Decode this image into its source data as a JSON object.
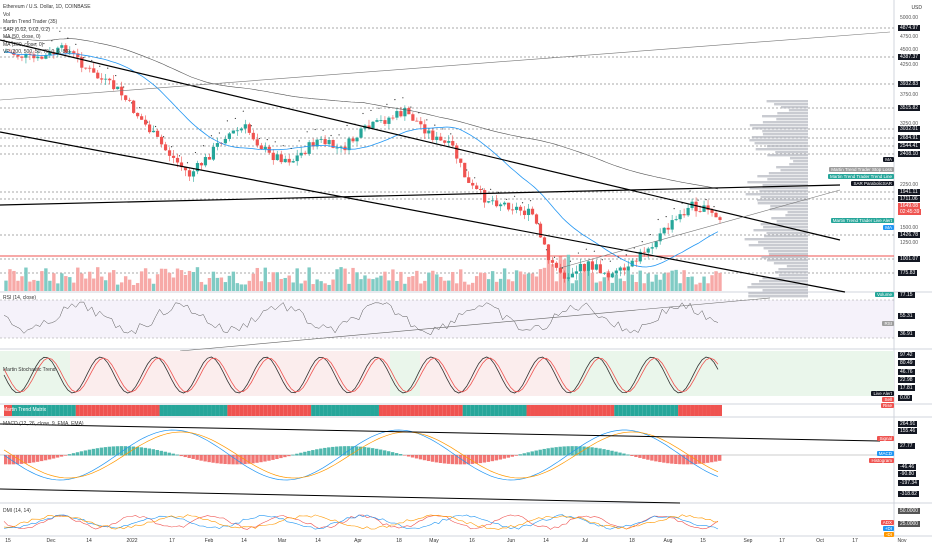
{
  "header": {
    "symbol": "Ethereum / U.S. Dollar, 1D, COINBASE",
    "currency": "USD",
    "legend": [
      "Vol",
      "Martin Trend Trader (35)",
      "SAR (0.02, 0.02, 0.2)",
      "MA (50, close, 0)",
      "MA (200, close, 0)",
      "VP (200, 500, 50, 70, 0, 6, 80)"
    ]
  },
  "price_axis": {
    "labels": [
      {
        "v": "5000.00",
        "y": 18,
        "type": "tick"
      },
      {
        "v": "4874.97",
        "y": 28,
        "type": "box"
      },
      {
        "v": "4750.00",
        "y": 37,
        "type": "tick"
      },
      {
        "v": "4500.00",
        "y": 50,
        "type": "tick"
      },
      {
        "v": "4387.37",
        "y": 57,
        "type": "box"
      },
      {
        "v": "4250.00",
        "y": 65,
        "type": "tick"
      },
      {
        "v": "3932.83",
        "y": 84,
        "type": "box"
      },
      {
        "v": "3750.00",
        "y": 95,
        "type": "tick"
      },
      {
        "v": "3515.82",
        "y": 108,
        "type": "box"
      },
      {
        "v": "3250.00",
        "y": 124,
        "type": "tick"
      },
      {
        "v": "3032.01",
        "y": 129,
        "type": "box"
      },
      {
        "v": "2684.91",
        "y": 138,
        "type": "box"
      },
      {
        "v": "2544.41",
        "y": 146,
        "type": "box"
      },
      {
        "v": "2408.10",
        "y": 154,
        "type": "box"
      },
      {
        "v": "2250.00",
        "y": 185,
        "type": "tick"
      },
      {
        "v": "1941.11",
        "y": 192,
        "type": "box"
      },
      {
        "v": "1711.06",
        "y": 199,
        "type": "box"
      },
      {
        "v": "1649.08",
        "y": 206,
        "type": "red"
      },
      {
        "v": "02:45:39",
        "y": 212,
        "type": "red"
      },
      {
        "v": "1500.00",
        "y": 228,
        "type": "tick"
      },
      {
        "v": "1426.78",
        "y": 235,
        "type": "box"
      },
      {
        "v": "1250.00",
        "y": 243,
        "type": "tick"
      },
      {
        "v": "1001.07",
        "y": 259,
        "type": "box"
      },
      {
        "v": "775.83",
        "y": 273,
        "type": "box"
      }
    ]
  },
  "tags": [
    {
      "text": "Martin Trend Trader Stop Loss",
      "y": 170,
      "color": "#ffffff",
      "bg": "#9e9e9e"
    },
    {
      "text": "Martin Trend Trader Trend Line",
      "y": 177,
      "color": "#ffffff",
      "bg": "#26a69a"
    },
    {
      "text": "SAR ParabolicSAR",
      "y": 184,
      "color": "#ffffff",
      "bg": "#131722"
    },
    {
      "text": "Martin Trend Trader Live Alert",
      "y": 221,
      "color": "#ffffff",
      "bg": "#26a69a"
    },
    {
      "text": "MA",
      "y": 228,
      "color": "#ffffff",
      "bg": "#2196f3"
    },
    {
      "text": "MA",
      "y": 160,
      "color": "#ffffff",
      "bg": "#131722"
    },
    {
      "text": "Volume",
      "y": 295,
      "color": "#ffffff",
      "bg": "#26a69a"
    }
  ],
  "rsi": {
    "title": "RSI (14, close)",
    "labels": [
      {
        "v": "77.15",
        "y": 295
      },
      {
        "v": "55.31",
        "y": 316
      },
      {
        "v": "36.91",
        "y": 334
      }
    ],
    "tag": "RSI"
  },
  "stoch": {
    "title": "Martin Stochastic Trend",
    "labels": [
      {
        "v": "97.42",
        "y": 355
      },
      {
        "v": "80.49",
        "y": 363
      },
      {
        "v": "46.76",
        "y": 372
      },
      {
        "v": "22.98",
        "y": 380
      },
      {
        "v": "17.81",
        "y": 388
      },
      {
        "v": "0.00",
        "y": 398
      }
    ],
    "tags": [
      "Live Alert",
      "Sell",
      "Rise"
    ]
  },
  "trend": {
    "title": "Martin Trend Matrix"
  },
  "macd": {
    "title": "MACD (12, 26, close, 9, EMA, EMA)",
    "labels": [
      {
        "v": "264.91",
        "y": 424
      },
      {
        "v": "155.46",
        "y": 431
      },
      {
        "v": "27.77",
        "y": 446
      },
      {
        "v": "-46.46",
        "y": 467
      },
      {
        "v": "-90.80",
        "y": 474
      },
      {
        "v": "-197.34",
        "y": 483
      },
      {
        "v": "-318.82",
        "y": 494
      }
    ],
    "tags": [
      "Signal",
      "MACD",
      "Histogram"
    ]
  },
  "dmi": {
    "title": "DMI (14, 14)",
    "labels": [
      {
        "v": "50.0000",
        "y": 511
      },
      {
        "v": "25.0000",
        "y": 524
      }
    ],
    "tags": [
      "ADX",
      "+DI",
      "-DI"
    ]
  },
  "time_axis": [
    {
      "t": "15",
      "x": 8
    },
    {
      "t": "Dec",
      "x": 51
    },
    {
      "t": "14",
      "x": 89
    },
    {
      "t": "2022",
      "x": 132
    },
    {
      "t": "17",
      "x": 172
    },
    {
      "t": "Feb",
      "x": 209
    },
    {
      "t": "14",
      "x": 244
    },
    {
      "t": "Mar",
      "x": 282
    },
    {
      "t": "14",
      "x": 318
    },
    {
      "t": "Apr",
      "x": 358
    },
    {
      "t": "18",
      "x": 399
    },
    {
      "t": "May",
      "x": 434
    },
    {
      "t": "16",
      "x": 472
    },
    {
      "t": "Jun",
      "x": 511
    },
    {
      "t": "14",
      "x": 546
    },
    {
      "t": "Jul",
      "x": 585
    },
    {
      "t": "18",
      "x": 632
    },
    {
      "t": "Aug",
      "x": 668
    },
    {
      "t": "15",
      "x": 703
    },
    {
      "t": "Sep",
      "x": 748
    },
    {
      "t": "17",
      "x": 782
    },
    {
      "t": "Oct",
      "x": 820
    },
    {
      "t": "17",
      "x": 855
    },
    {
      "t": "Nov",
      "x": 902
    }
  ],
  "colors": {
    "up": "#26a69a",
    "down": "#ef5350",
    "ma50": "#2196f3",
    "ma200": "#000000",
    "vp": "#b2b5be"
  }
}
